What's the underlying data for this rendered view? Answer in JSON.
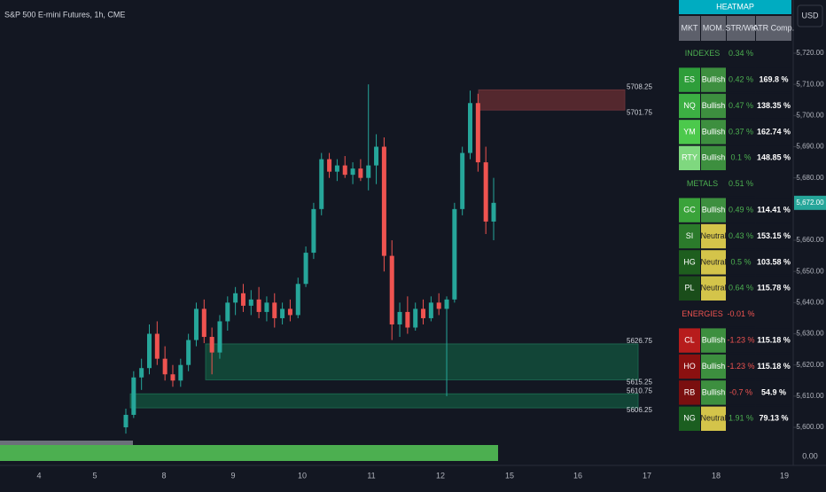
{
  "header": {
    "title": "S&P 500 E-mini Futures, 1h, CME",
    "currency": "USD"
  },
  "price_chart": {
    "yticks": [
      {
        "value": 5720,
        "label": "5,720.00"
      },
      {
        "value": 5710,
        "label": "5,710.00"
      },
      {
        "value": 5700,
        "label": "5,700.00"
      },
      {
        "value": 5690,
        "label": "5,690.00"
      },
      {
        "value": 5680,
        "label": "5,680.00"
      },
      {
        "value": 5660,
        "label": "5,660.00"
      },
      {
        "value": 5650,
        "label": "5,650.00"
      },
      {
        "value": 5640,
        "label": "5,640.00"
      },
      {
        "value": 5630,
        "label": "5,630.00"
      },
      {
        "value": 5620,
        "label": "5,620.00"
      },
      {
        "value": 5610,
        "label": "5,610.00"
      },
      {
        "value": 5600,
        "label": "5,600.00"
      }
    ],
    "indicator_tick": "0.00",
    "last_price": {
      "value": 5672,
      "label": "5,672.00"
    },
    "xticks": [
      "4",
      "5",
      "8",
      "9",
      "10",
      "11",
      "12",
      "15",
      "16",
      "17",
      "18",
      "19"
    ],
    "candles": [
      [
        5600,
        5606,
        5598,
        5604
      ],
      [
        5604,
        5618,
        5603,
        5616
      ],
      [
        5616,
        5622,
        5612,
        5619
      ],
      [
        5619,
        5633,
        5617,
        5630
      ],
      [
        5630,
        5634,
        5620,
        5622
      ],
      [
        5622,
        5626,
        5615,
        5617
      ],
      [
        5617,
        5620,
        5613,
        5615
      ],
      [
        5615,
        5622,
        5613,
        5620
      ],
      [
        5620,
        5630,
        5618,
        5628
      ],
      [
        5628,
        5640,
        5626,
        5638
      ],
      [
        5638,
        5641,
        5627,
        5629
      ],
      [
        5629,
        5632,
        5617,
        5624
      ],
      [
        5624,
        5636,
        5622,
        5634
      ],
      [
        5634,
        5642,
        5631,
        5640
      ],
      [
        5640,
        5645,
        5636,
        5643
      ],
      [
        5643,
        5646,
        5637,
        5639
      ],
      [
        5639,
        5644,
        5636,
        5641
      ],
      [
        5641,
        5645,
        5635,
        5637
      ],
      [
        5637,
        5642,
        5634,
        5640
      ],
      [
        5640,
        5643,
        5632,
        5635
      ],
      [
        5635,
        5640,
        5633,
        5638
      ],
      [
        5638,
        5641,
        5634,
        5636
      ],
      [
        5636,
        5648,
        5635,
        5646
      ],
      [
        5646,
        5658,
        5645,
        5656
      ],
      [
        5656,
        5672,
        5654,
        5670
      ],
      [
        5670,
        5688,
        5668,
        5686
      ],
      [
        5686,
        5688,
        5680,
        5682
      ],
      [
        5682,
        5686,
        5679,
        5684
      ],
      [
        5684,
        5687,
        5680,
        5681
      ],
      [
        5681,
        5685,
        5678,
        5683
      ],
      [
        5683,
        5686,
        5679,
        5680
      ],
      [
        5680,
        5710,
        5676,
        5684
      ],
      [
        5684,
        5694,
        5678,
        5690
      ],
      [
        5690,
        5693,
        5650,
        5655
      ],
      [
        5655,
        5660,
        5628,
        5633
      ],
      [
        5633,
        5640,
        5629,
        5637
      ],
      [
        5637,
        5642,
        5630,
        5632
      ],
      [
        5632,
        5640,
        5631,
        5638
      ],
      [
        5638,
        5641,
        5633,
        5635
      ],
      [
        5635,
        5642,
        5634,
        5640
      ],
      [
        5640,
        5643,
        5636,
        5638
      ],
      [
        5638,
        5642,
        5610,
        5641
      ],
      [
        5641,
        5672,
        5640,
        5670
      ],
      [
        5670,
        5690,
        5668,
        5688
      ],
      [
        5688,
        5708,
        5686,
        5704
      ],
      [
        5704,
        5707,
        5682,
        5685
      ],
      [
        5685,
        5690,
        5662,
        5666
      ],
      [
        5666,
        5680,
        5660,
        5672
      ]
    ],
    "up_color": "#26a69a",
    "down_color": "#ef5350",
    "zones": [
      {
        "top": 5708.25,
        "bottom": 5701.75,
        "color": "#5c2a30"
      },
      {
        "top": 5626.75,
        "bottom": 5615.25,
        "color": "#124a3a"
      },
      {
        "top": 5610.75,
        "bottom": 5606.25,
        "color": "#124a3a"
      }
    ]
  },
  "table": {
    "title": "HEATMAP",
    "columns": [
      "MKT",
      "MOM.",
      "STR/WK",
      "ATR Comp."
    ],
    "groups": [
      {
        "name": "INDEXES",
        "str_wk": "0.34 %",
        "color": "#4caf50",
        "rows": [
          {
            "mkt": "ES",
            "mom": "Bullish",
            "str": "0.42 %",
            "atr": "169.8 %",
            "color": "#2e9e3a"
          },
          {
            "mkt": "NQ",
            "mom": "Bullish",
            "str": "0.47 %",
            "atr": "138.35 %",
            "color": "#3cb043"
          },
          {
            "mkt": "YM",
            "mom": "Bullish",
            "str": "0.37 %",
            "atr": "162.74 %",
            "color": "#4cc94c"
          },
          {
            "mkt": "RTY",
            "mom": "Bullish",
            "str": "0.1 %",
            "atr": "148.85 %",
            "color": "#7fd87f"
          }
        ]
      },
      {
        "name": "METALS",
        "str_wk": "0.51 %",
        "color": "#4caf50",
        "rows": [
          {
            "mkt": "GC",
            "mom": "Bullish",
            "str": "0.49 %",
            "atr": "114.41 %",
            "color": "#3aa33a"
          },
          {
            "mkt": "SI",
            "mom": "Neutral",
            "str": "0.43 %",
            "atr": "153.15 %",
            "color": "#2b7a2b"
          },
          {
            "mkt": "HG",
            "mom": "Neutral",
            "str": "0.5 %",
            "atr": "103.58 %",
            "color": "#1e5e1e"
          },
          {
            "mkt": "PL",
            "mom": "Neutral",
            "str": "0.64 %",
            "atr": "115.78 %",
            "color": "#1a4d1a"
          }
        ]
      },
      {
        "name": "ENERGIES",
        "str_wk": "-0.01 %",
        "color": "#ef5350",
        "rows": [
          {
            "mkt": "CL",
            "mom": "Bullish",
            "str": "-1.23 %",
            "atr": "115.18 %",
            "color": "#b71c1c"
          },
          {
            "mkt": "HO",
            "mom": "Bullish",
            "str": "-1.23 %",
            "atr": "115.18 %",
            "color": "#8b1010"
          },
          {
            "mkt": "RB",
            "mom": "Bullish",
            "str": "-0.7 %",
            "atr": "54.9 %",
            "color": "#7a0f0f"
          },
          {
            "mkt": "NG",
            "mom": "Neutral",
            "str": "1.91 %",
            "atr": "79.13 %",
            "color": "#1b5e20"
          }
        ]
      }
    ]
  }
}
